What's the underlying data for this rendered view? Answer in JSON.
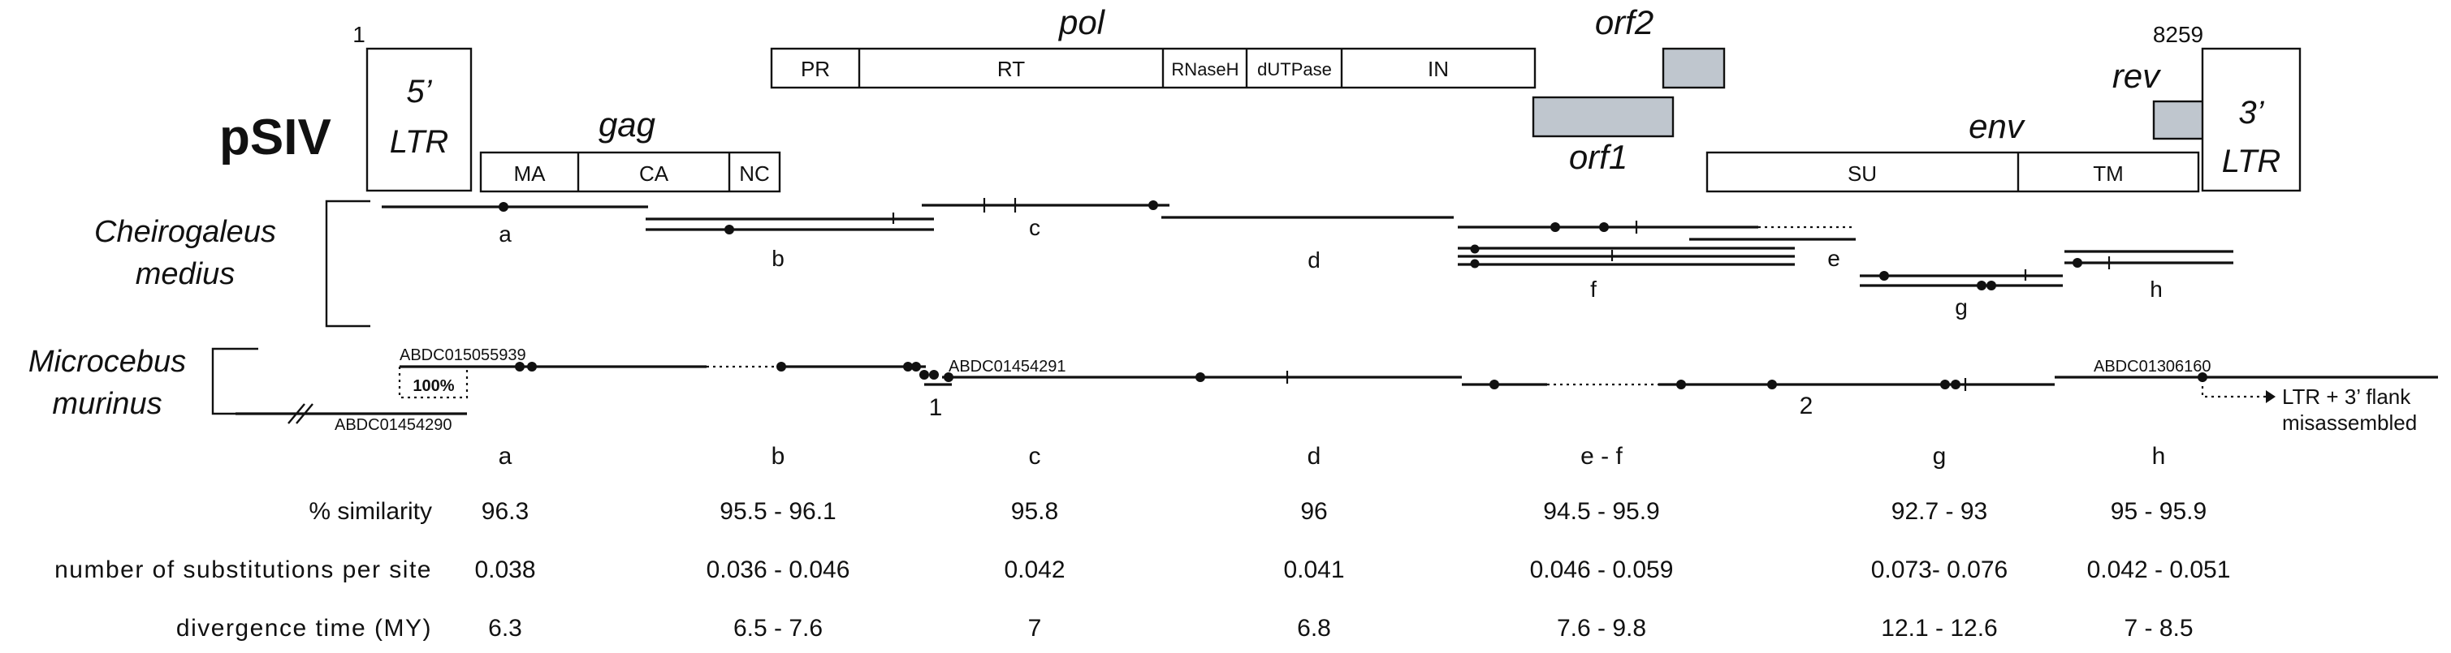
{
  "title": "pSIV",
  "coords": {
    "start": "1",
    "end": "8259"
  },
  "genes": {
    "ltr5": {
      "line1": "5’",
      "line2": "LTR"
    },
    "ltr3": {
      "line1": "3’",
      "line2": "LTR"
    },
    "gag": "gag",
    "pol": "pol",
    "env": "env",
    "orf1": "orf1",
    "orf2": "orf2",
    "rev": "rev"
  },
  "domains": {
    "gag": [
      "MA",
      "CA",
      "NC"
    ],
    "pol": [
      "PR",
      "RT",
      "RNaseH",
      "dUTPase",
      "IN"
    ],
    "env": [
      "SU",
      "TM"
    ]
  },
  "species": {
    "cheirogaleus": {
      "line1": "Cheirogaleus",
      "line2": "medius"
    },
    "microcebus": {
      "line1": "Microcebus",
      "line2": "murinus"
    }
  },
  "fragments": [
    "a",
    "b",
    "c",
    "d",
    "e",
    "f",
    "g",
    "h"
  ],
  "contigs": {
    "a_top": "ABDC015055939",
    "a_bottom": "ABDC01454290",
    "c": "ABDC01454291",
    "h": "ABDC01306160"
  },
  "identity_box": "100%",
  "junctions": [
    "1",
    "2"
  ],
  "misassembly_note": {
    "line1": "LTR + 3’ flank",
    "line2": "misassembled"
  },
  "table": {
    "columns": [
      "a",
      "b",
      "c",
      "d",
      "e - f",
      "g",
      "h"
    ],
    "rows": [
      {
        "label": "% similarity",
        "values": [
          "96.3",
          "95.5 - 96.1",
          "95.8",
          "96",
          "94.5 - 95.9",
          "92.7 - 93",
          "95  - 95.9"
        ]
      },
      {
        "label": "number of substitutions per site",
        "values": [
          "0.038",
          "0.036 - 0.046",
          "0.042",
          "0.041",
          "0.046 - 0.059",
          "0.073- 0.076",
          "0.042 - 0.051"
        ]
      },
      {
        "label": "divergence time (MY)",
        "values": [
          "6.3",
          "6.5 - 7.6",
          "7",
          "6.8",
          "7.6 - 9.8",
          "12.1 - 12.6",
          "7 - 8.5"
        ]
      }
    ]
  }
}
